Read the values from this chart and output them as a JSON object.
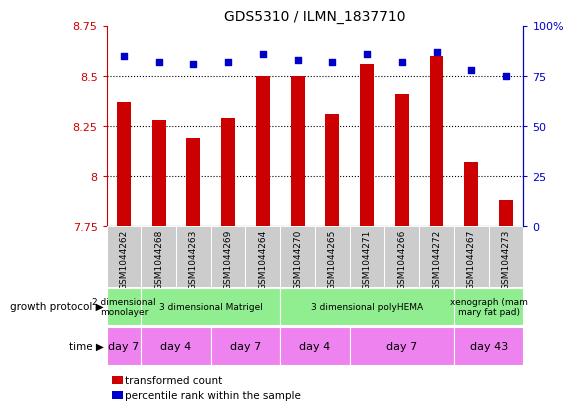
{
  "title": "GDS5310 / ILMN_1837710",
  "samples": [
    "GSM1044262",
    "GSM1044268",
    "GSM1044263",
    "GSM1044269",
    "GSM1044264",
    "GSM1044270",
    "GSM1044265",
    "GSM1044271",
    "GSM1044266",
    "GSM1044272",
    "GSM1044267",
    "GSM1044273"
  ],
  "transformed_count": [
    8.37,
    8.28,
    8.19,
    8.29,
    8.5,
    8.5,
    8.31,
    8.56,
    8.41,
    8.6,
    8.07,
    7.88
  ],
  "percentile_rank": [
    85,
    82,
    81,
    82,
    86,
    83,
    82,
    86,
    82,
    87,
    78,
    75
  ],
  "bar_color": "#cc0000",
  "dot_color": "#0000cc",
  "ylim_left": [
    7.75,
    8.75
  ],
  "ylim_right": [
    0,
    100
  ],
  "yticks_left": [
    7.75,
    8.0,
    8.25,
    8.5,
    8.75
  ],
  "ytick_labels_left": [
    "7.75",
    "8",
    "8.25",
    "8.5",
    "8.75"
  ],
  "yticks_right": [
    0,
    25,
    50,
    75,
    100
  ],
  "ytick_labels_right": [
    "0",
    "25",
    "50",
    "75",
    "100%"
  ],
  "growth_protocol_groups": [
    {
      "label": "2 dimensional\nmonolayer",
      "start": 0,
      "end": 1,
      "color": "#90ee90"
    },
    {
      "label": "3 dimensional Matrigel",
      "start": 1,
      "end": 5,
      "color": "#90ee90"
    },
    {
      "label": "3 dimensional polyHEMA",
      "start": 5,
      "end": 10,
      "color": "#90ee90"
    },
    {
      "label": "xenograph (mam\nmary fat pad)",
      "start": 10,
      "end": 12,
      "color": "#90ee90"
    }
  ],
  "time_groups": [
    {
      "label": "day 7",
      "start": 0,
      "end": 1,
      "color": "#ee82ee"
    },
    {
      "label": "day 4",
      "start": 1,
      "end": 3,
      "color": "#ee82ee"
    },
    {
      "label": "day 7",
      "start": 3,
      "end": 5,
      "color": "#ee82ee"
    },
    {
      "label": "day 4",
      "start": 5,
      "end": 7,
      "color": "#ee82ee"
    },
    {
      "label": "day 7",
      "start": 7,
      "end": 10,
      "color": "#ee82ee"
    },
    {
      "label": "day 43",
      "start": 10,
      "end": 12,
      "color": "#ee82ee"
    }
  ],
  "legend_items": [
    {
      "label": "transformed count",
      "color": "#cc0000"
    },
    {
      "label": "percentile rank within the sample",
      "color": "#0000cc"
    }
  ],
  "grid_color": "#000000",
  "sample_bg_color": "#cccccc",
  "bar_bottom": 7.75,
  "bar_width": 0.4
}
